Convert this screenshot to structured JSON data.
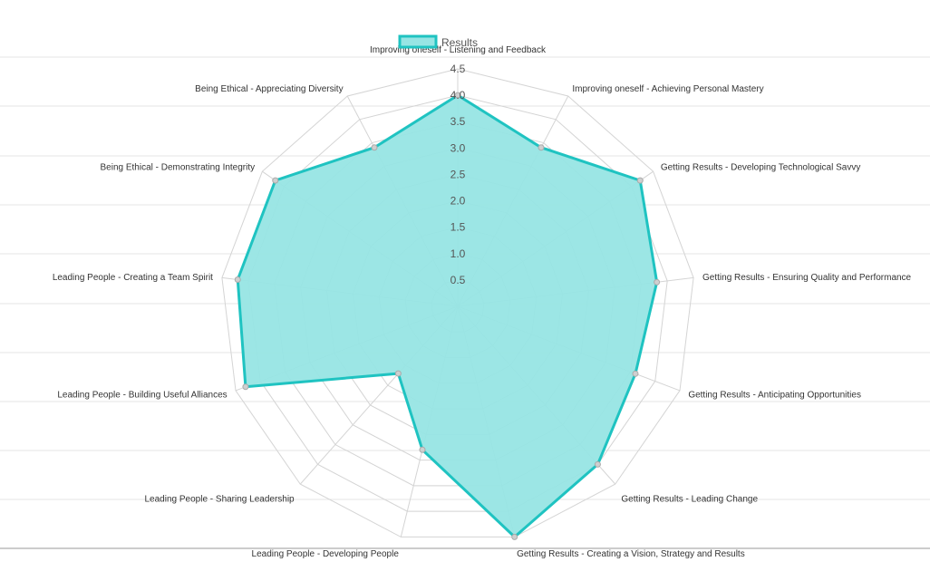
{
  "chart_data": {
    "type": "radar",
    "legend": {
      "position": "top",
      "entries": [
        "Results"
      ]
    },
    "axes": [
      "Improving oneself - Listening and Feedback",
      "Improving oneself - Achieving Personal Mastery",
      "Getting Results - Developing Technological Savvy",
      "Getting Results - Ensuring Quality and Performance",
      "Getting Results - Anticipating Opportunities",
      "Getting Results - Leading Change",
      "Getting Results - Creating a Vision, Strategy and Results",
      "Leading People - Developing People",
      "Leading People - Sharing Leadership",
      "Leading People - Building Useful Alliances",
      "Leading People - Creating a Team Spirit",
      "Being Ethical - Demonstrating Integrity",
      "Being Ethical - Appreciating Diversity"
    ],
    "scale": {
      "min": 0,
      "max": 4.5,
      "step": 0.5
    },
    "ticks": [
      "0.5",
      "1.0",
      "1.5",
      "2.0",
      "2.5",
      "3.0",
      "3.5",
      "4.0",
      "4.5"
    ],
    "grid": true,
    "series": [
      {
        "name": "Results",
        "values": [
          4.0,
          3.4,
          4.2,
          3.8,
          3.6,
          4.0,
          4.5,
          2.8,
          1.7,
          4.3,
          4.2,
          4.2,
          3.4
        ],
        "border_color": "#1fc3c1",
        "fill_color": "#97e5e4"
      }
    ]
  }
}
